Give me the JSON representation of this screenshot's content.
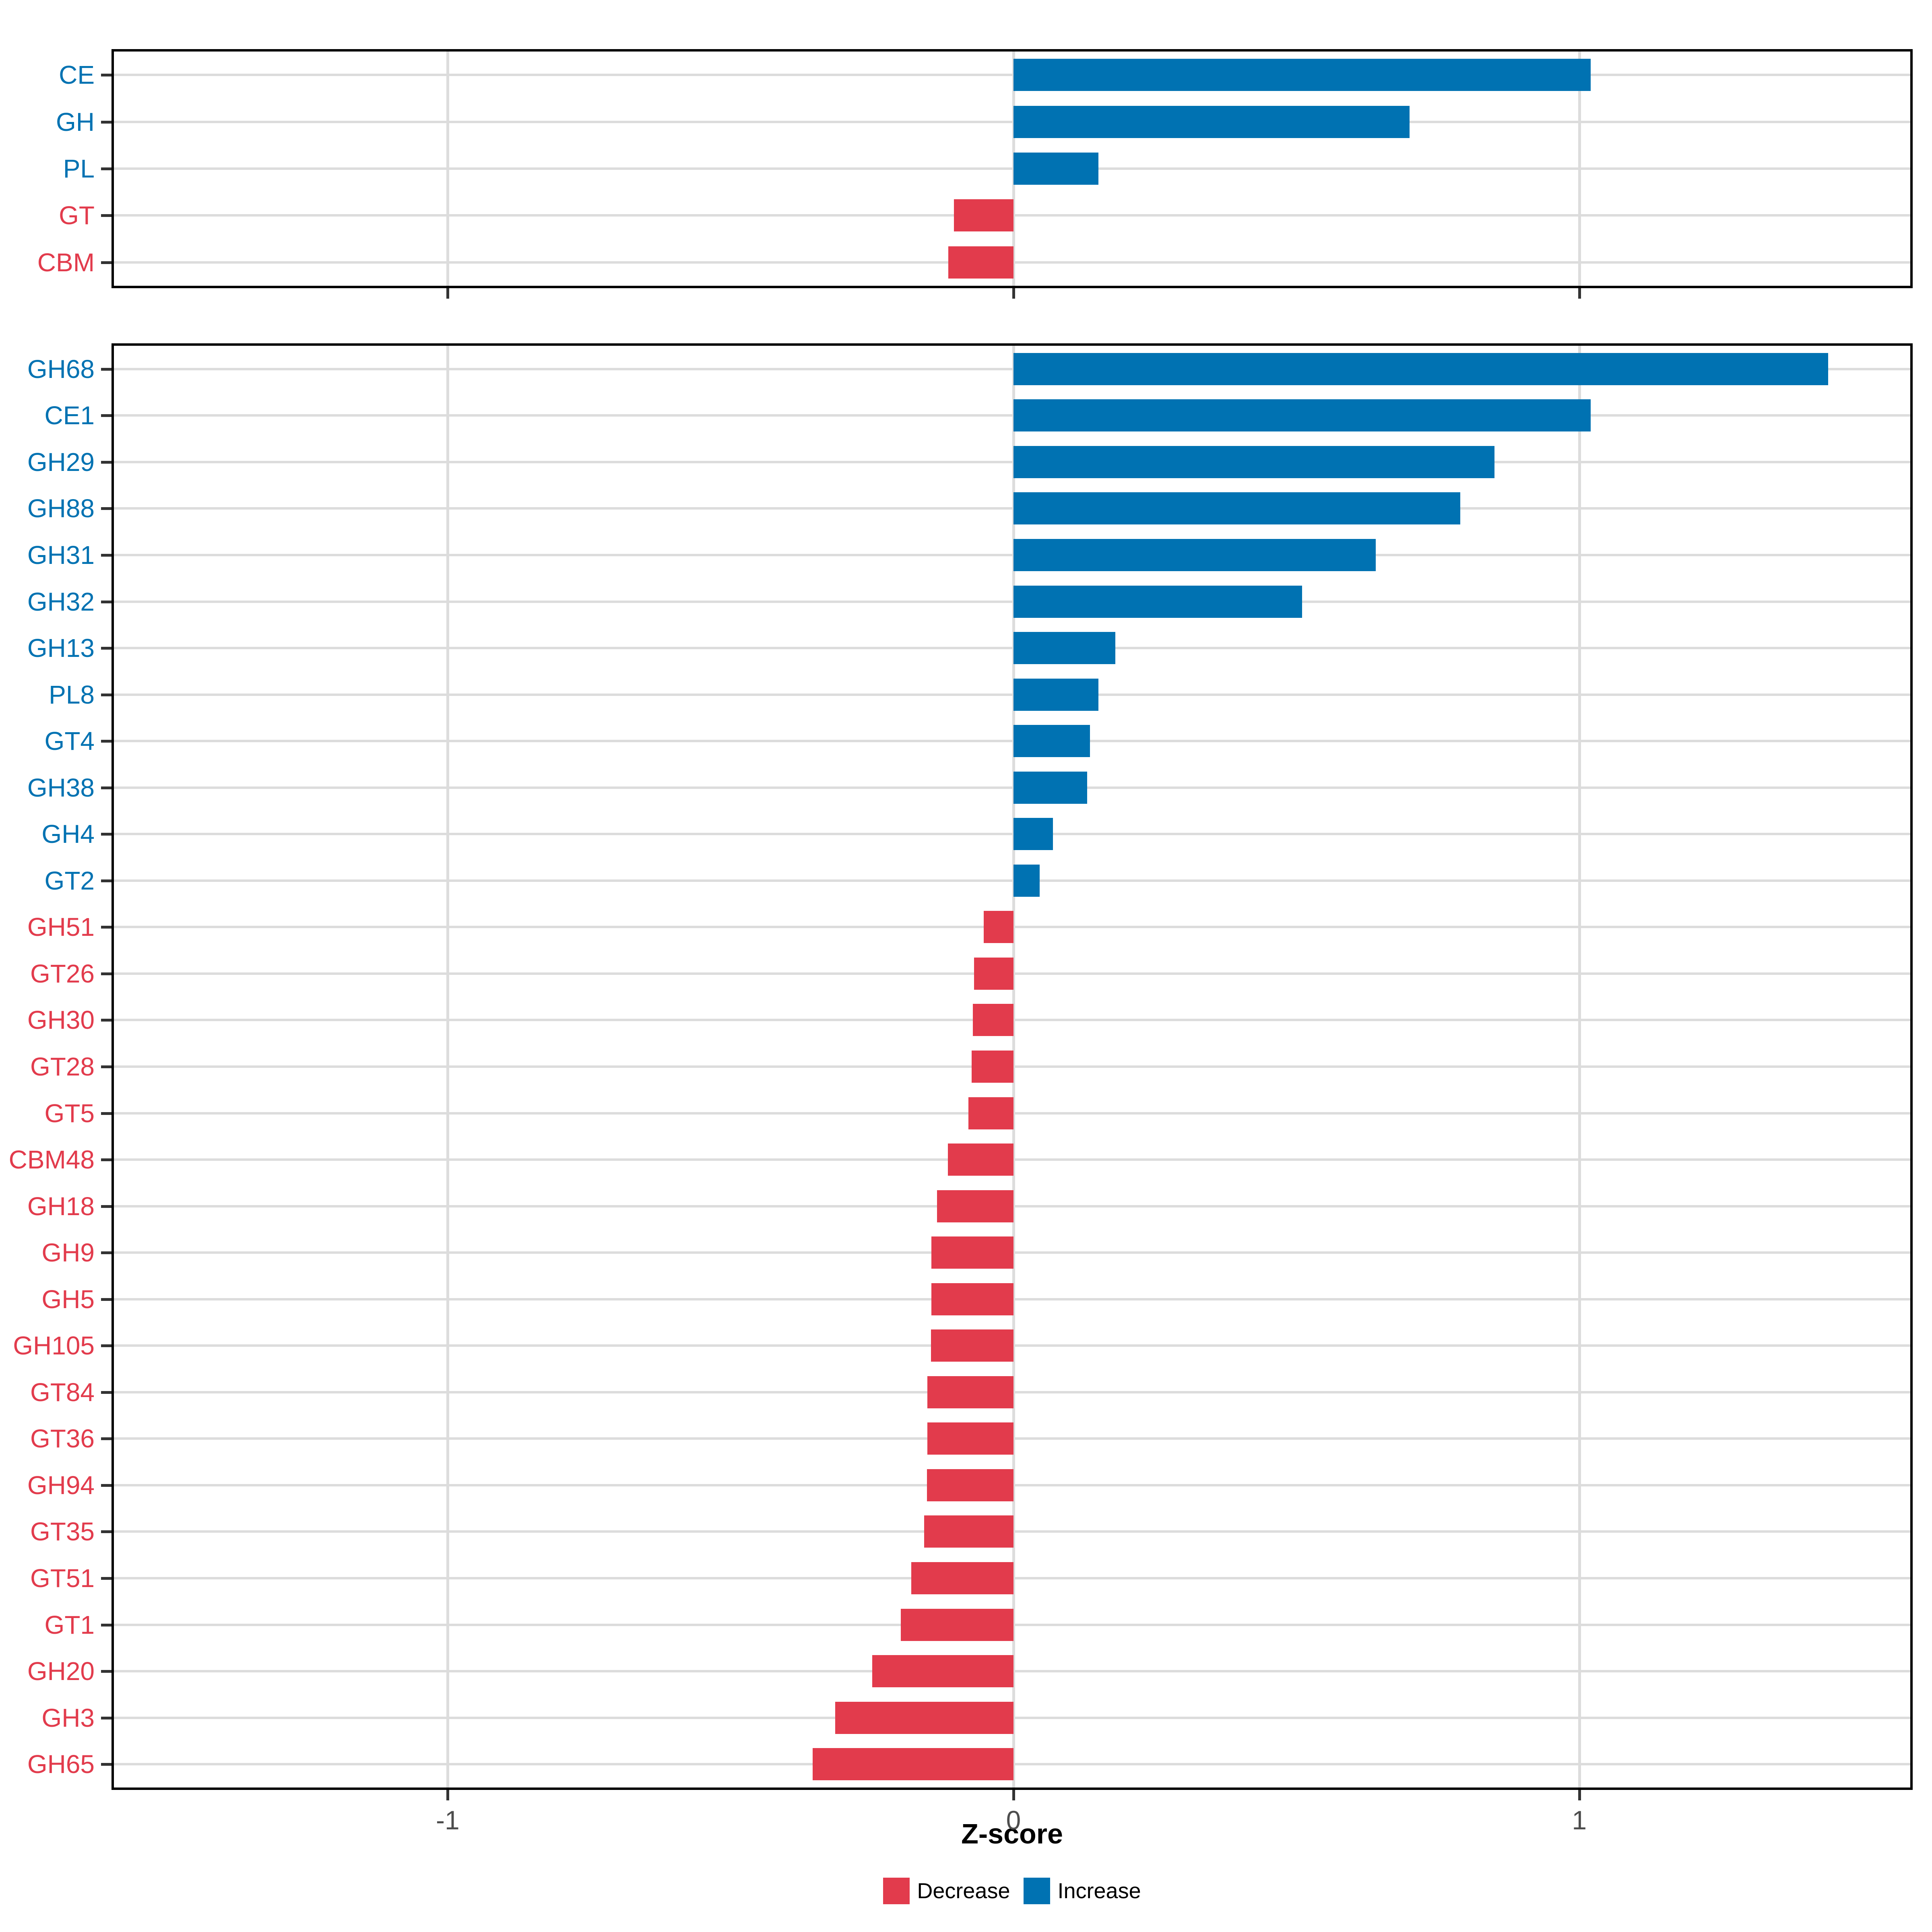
{
  "axis": {
    "label": "Z-score",
    "ticks": [
      "-1",
      "0",
      "1"
    ],
    "tick_values": [
      -1,
      0,
      1
    ],
    "xlim": [
      -1.59,
      1.585
    ]
  },
  "legend": {
    "position": "bottom",
    "items": [
      {
        "label": "Decrease",
        "color": "#e23b4c"
      },
      {
        "label": "Increase",
        "color": "#0072b2"
      }
    ]
  },
  "colors": {
    "increase": "#0072b2",
    "decrease": "#e23b4c",
    "grid": "#dcdcdc",
    "panel_border": "#000000",
    "tick_mark": "#333333",
    "tick_label": "#4d4d4d"
  },
  "chart_data": [
    {
      "type": "bar",
      "orientation": "horizontal",
      "panel": "cazyme-classes",
      "title": "",
      "xlabel": "Z-score",
      "grid": true,
      "xlim": [
        -1.59,
        1.585
      ],
      "categories": [
        "CE",
        "GH",
        "PL",
        "GT",
        "CBM"
      ],
      "values": [
        1.02,
        0.7,
        0.15,
        -0.105,
        -0.115
      ]
    },
    {
      "type": "bar",
      "orientation": "horizontal",
      "panel": "cazyme-families",
      "title": "",
      "xlabel": "Z-score",
      "grid": true,
      "xlim": [
        -1.59,
        1.585
      ],
      "categories": [
        "GH68",
        "CE1",
        "GH29",
        "GH88",
        "GH31",
        "GH32",
        "GH13",
        "PL8",
        "GT4",
        "GH38",
        "GH4",
        "GT2",
        "GH51",
        "GT26",
        "GH30",
        "GT28",
        "GT5",
        "CBM48",
        "GH18",
        "GH9",
        "GH5",
        "GH105",
        "GT84",
        "GT36",
        "GH94",
        "GT35",
        "GT51",
        "GT1",
        "GH20",
        "GH3",
        "GH65"
      ],
      "values": [
        1.44,
        1.02,
        0.85,
        0.79,
        0.64,
        0.51,
        0.18,
        0.15,
        0.135,
        0.13,
        0.07,
        0.046,
        -0.053,
        -0.07,
        -0.072,
        -0.074,
        -0.08,
        -0.116,
        -0.135,
        -0.145,
        -0.145,
        -0.146,
        -0.152,
        -0.152,
        -0.153,
        -0.158,
        -0.181,
        -0.199,
        -0.25,
        -0.315,
        -0.355
      ]
    }
  ]
}
